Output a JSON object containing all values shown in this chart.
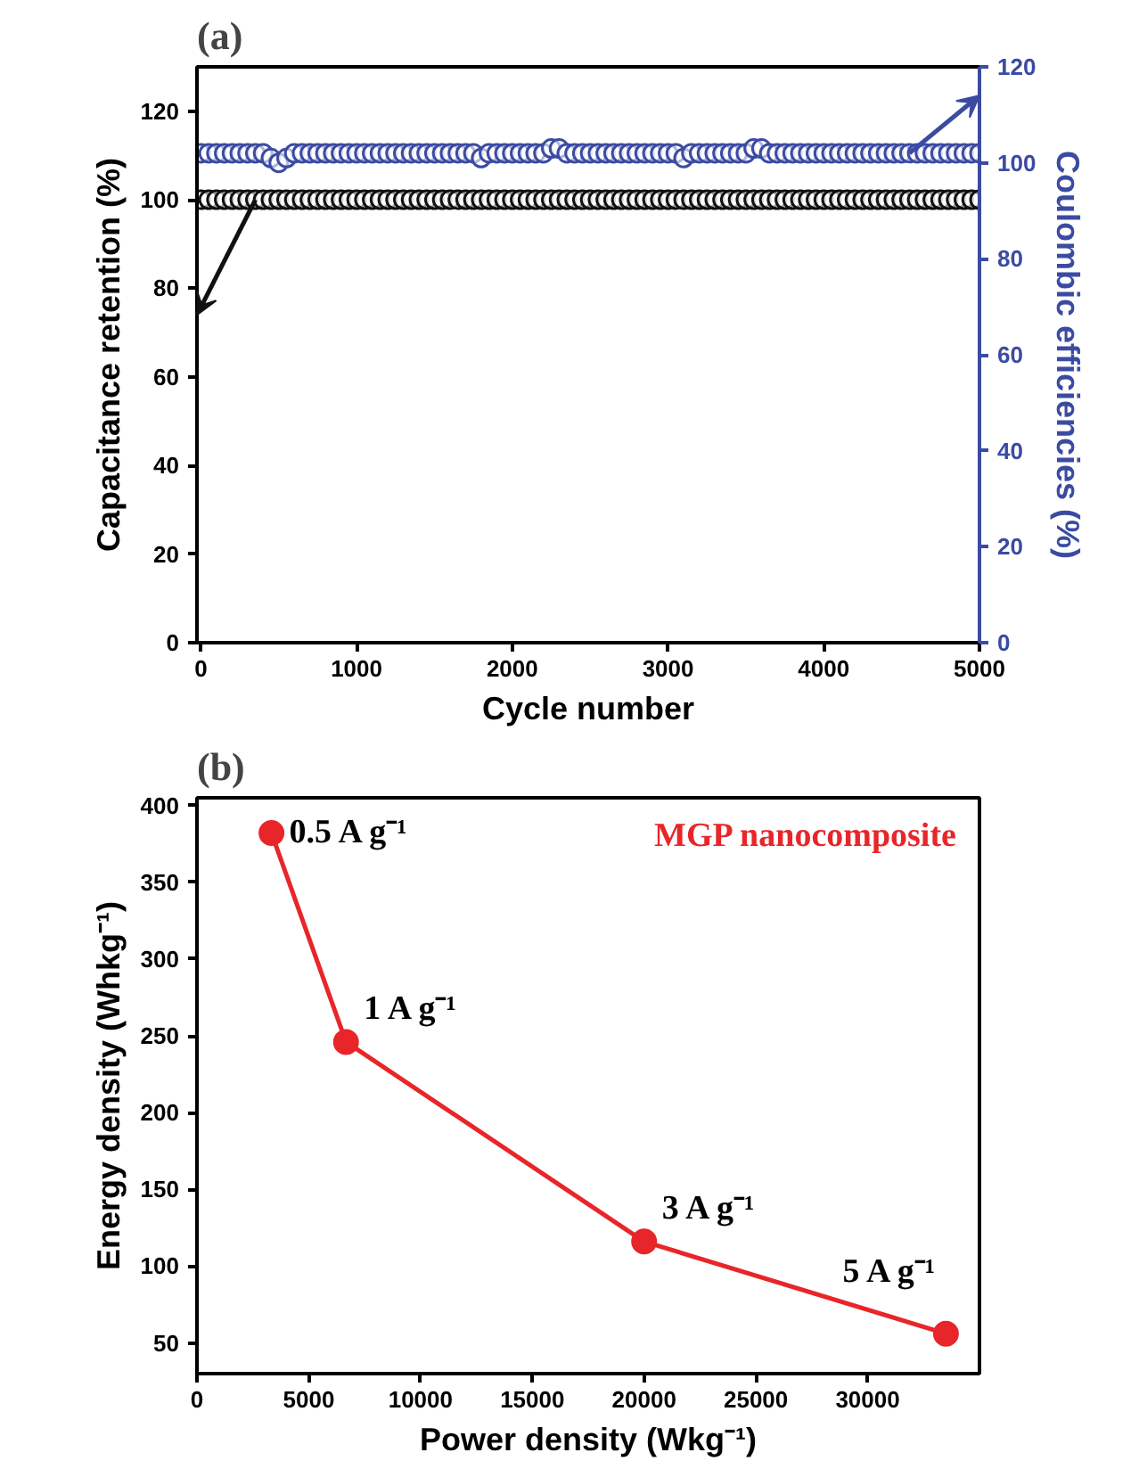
{
  "chart_data": [
    {
      "type": "scatter",
      "title": "(a)",
      "xlabel": "Cycle number",
      "ylabel": "Capacitance retention (%)",
      "y2label": "Coulombic efficiencies (%)",
      "marker": "circle",
      "grid": false,
      "x": [
        0,
        50,
        100,
        150,
        200,
        250,
        300,
        350,
        400,
        450,
        500,
        550,
        600,
        650,
        700,
        750,
        800,
        850,
        900,
        950,
        1000,
        1050,
        1100,
        1150,
        1200,
        1250,
        1300,
        1350,
        1400,
        1450,
        1500,
        1550,
        1600,
        1650,
        1700,
        1750,
        1800,
        1850,
        1900,
        1950,
        2000,
        2050,
        2100,
        2150,
        2200,
        2250,
        2300,
        2350,
        2400,
        2450,
        2500,
        2550,
        2600,
        2650,
        2700,
        2750,
        2800,
        2850,
        2900,
        2950,
        3000,
        3050,
        3100,
        3150,
        3200,
        3250,
        3300,
        3350,
        3400,
        3450,
        3500,
        3550,
        3600,
        3650,
        3700,
        3750,
        3800,
        3850,
        3900,
        3950,
        4000,
        4050,
        4100,
        4150,
        4200,
        4250,
        4300,
        4350,
        4400,
        4450,
        4500,
        4550,
        4600,
        4650,
        4700,
        4750,
        4800,
        4850,
        4900,
        4950,
        5000
      ],
      "series": [
        {
          "color": "#111111",
          "values": [
            100,
            100,
            100,
            100,
            100,
            100,
            100,
            100,
            100,
            100,
            100,
            100,
            100,
            100,
            100,
            100,
            100,
            100,
            100,
            100,
            100,
            100,
            100,
            100,
            100,
            100,
            100,
            100,
            100,
            100,
            100,
            100,
            100,
            100,
            100,
            100,
            100,
            100,
            100,
            100,
            100,
            100,
            100,
            100,
            100,
            100,
            100,
            100,
            100,
            100,
            100,
            100,
            100,
            100,
            100,
            100,
            100,
            100,
            100,
            100,
            100,
            100,
            100,
            100,
            100,
            100,
            100,
            100,
            100,
            100,
            100,
            100,
            100,
            100,
            100,
            100,
            100,
            100,
            100,
            100,
            100,
            100,
            100,
            100,
            100,
            100,
            100,
            100,
            100,
            100,
            100,
            100,
            100,
            100,
            100,
            100,
            100,
            100,
            100,
            100,
            100
          ]
        },
        {
          "color": "#3b4ba3",
          "axis": "y2",
          "values": [
            102,
            102,
            102,
            102,
            102,
            102,
            102,
            102,
            102,
            101,
            100,
            101,
            102,
            102,
            102,
            102,
            102,
            102,
            102,
            102,
            102,
            102,
            102,
            102,
            102,
            102,
            102,
            102,
            102,
            102,
            102,
            102,
            102,
            102,
            102,
            102,
            101,
            102,
            102,
            102,
            102,
            102,
            102,
            102,
            102,
            103,
            103,
            102,
            102,
            102,
            102,
            102,
            102,
            102,
            102,
            102,
            102,
            102,
            102,
            102,
            102,
            102,
            101,
            102,
            102,
            102,
            102,
            102,
            102,
            102,
            102,
            103,
            103,
            102,
            102,
            102,
            102,
            102,
            102,
            102,
            102,
            102,
            102,
            102,
            102,
            102,
            102,
            102,
            102,
            102,
            102,
            102,
            102,
            102,
            102,
            102,
            102,
            102,
            102,
            102,
            102
          ]
        }
      ],
      "xlim": [
        -25,
        5000
      ],
      "xticks": [
        0,
        1000,
        2000,
        3000,
        4000,
        5000
      ],
      "ylim": [
        0,
        130
      ],
      "yticks": [
        0,
        20,
        40,
        60,
        80,
        100,
        120
      ],
      "y2lim": [
        0,
        120
      ],
      "y2ticks": [
        0,
        20,
        40,
        60,
        80,
        100,
        120
      ]
    },
    {
      "type": "line",
      "title": "(b)",
      "xlabel": "Power density (Wkg⁻¹)",
      "ylabel": "Energy density (Whkg⁻¹)",
      "marker": "circle",
      "grid": false,
      "x": [
        3333,
        6667,
        20000,
        33500
      ],
      "series": [
        {
          "name": "MGP nanocomposite",
          "color": "#e8262a",
          "values": [
            382,
            246,
            116,
            56
          ]
        }
      ],
      "xlim": [
        0,
        35000
      ],
      "xticks": [
        0,
        5000,
        10000,
        15000,
        20000,
        25000,
        30000
      ],
      "ylim": [
        30,
        405
      ],
      "yticks": [
        50,
        100,
        150,
        200,
        250,
        300,
        350,
        400
      ],
      "annotations": [
        {
          "text": "0.5 A g⁻¹",
          "x": 3333,
          "y": 382
        },
        {
          "text": "1 A g⁻¹",
          "x": 6667,
          "y": 246
        },
        {
          "text": "3 A g⁻¹",
          "x": 20000,
          "y": 116
        },
        {
          "text": "5 A g⁻¹",
          "x": 33500,
          "y": 56
        }
      ]
    }
  ]
}
